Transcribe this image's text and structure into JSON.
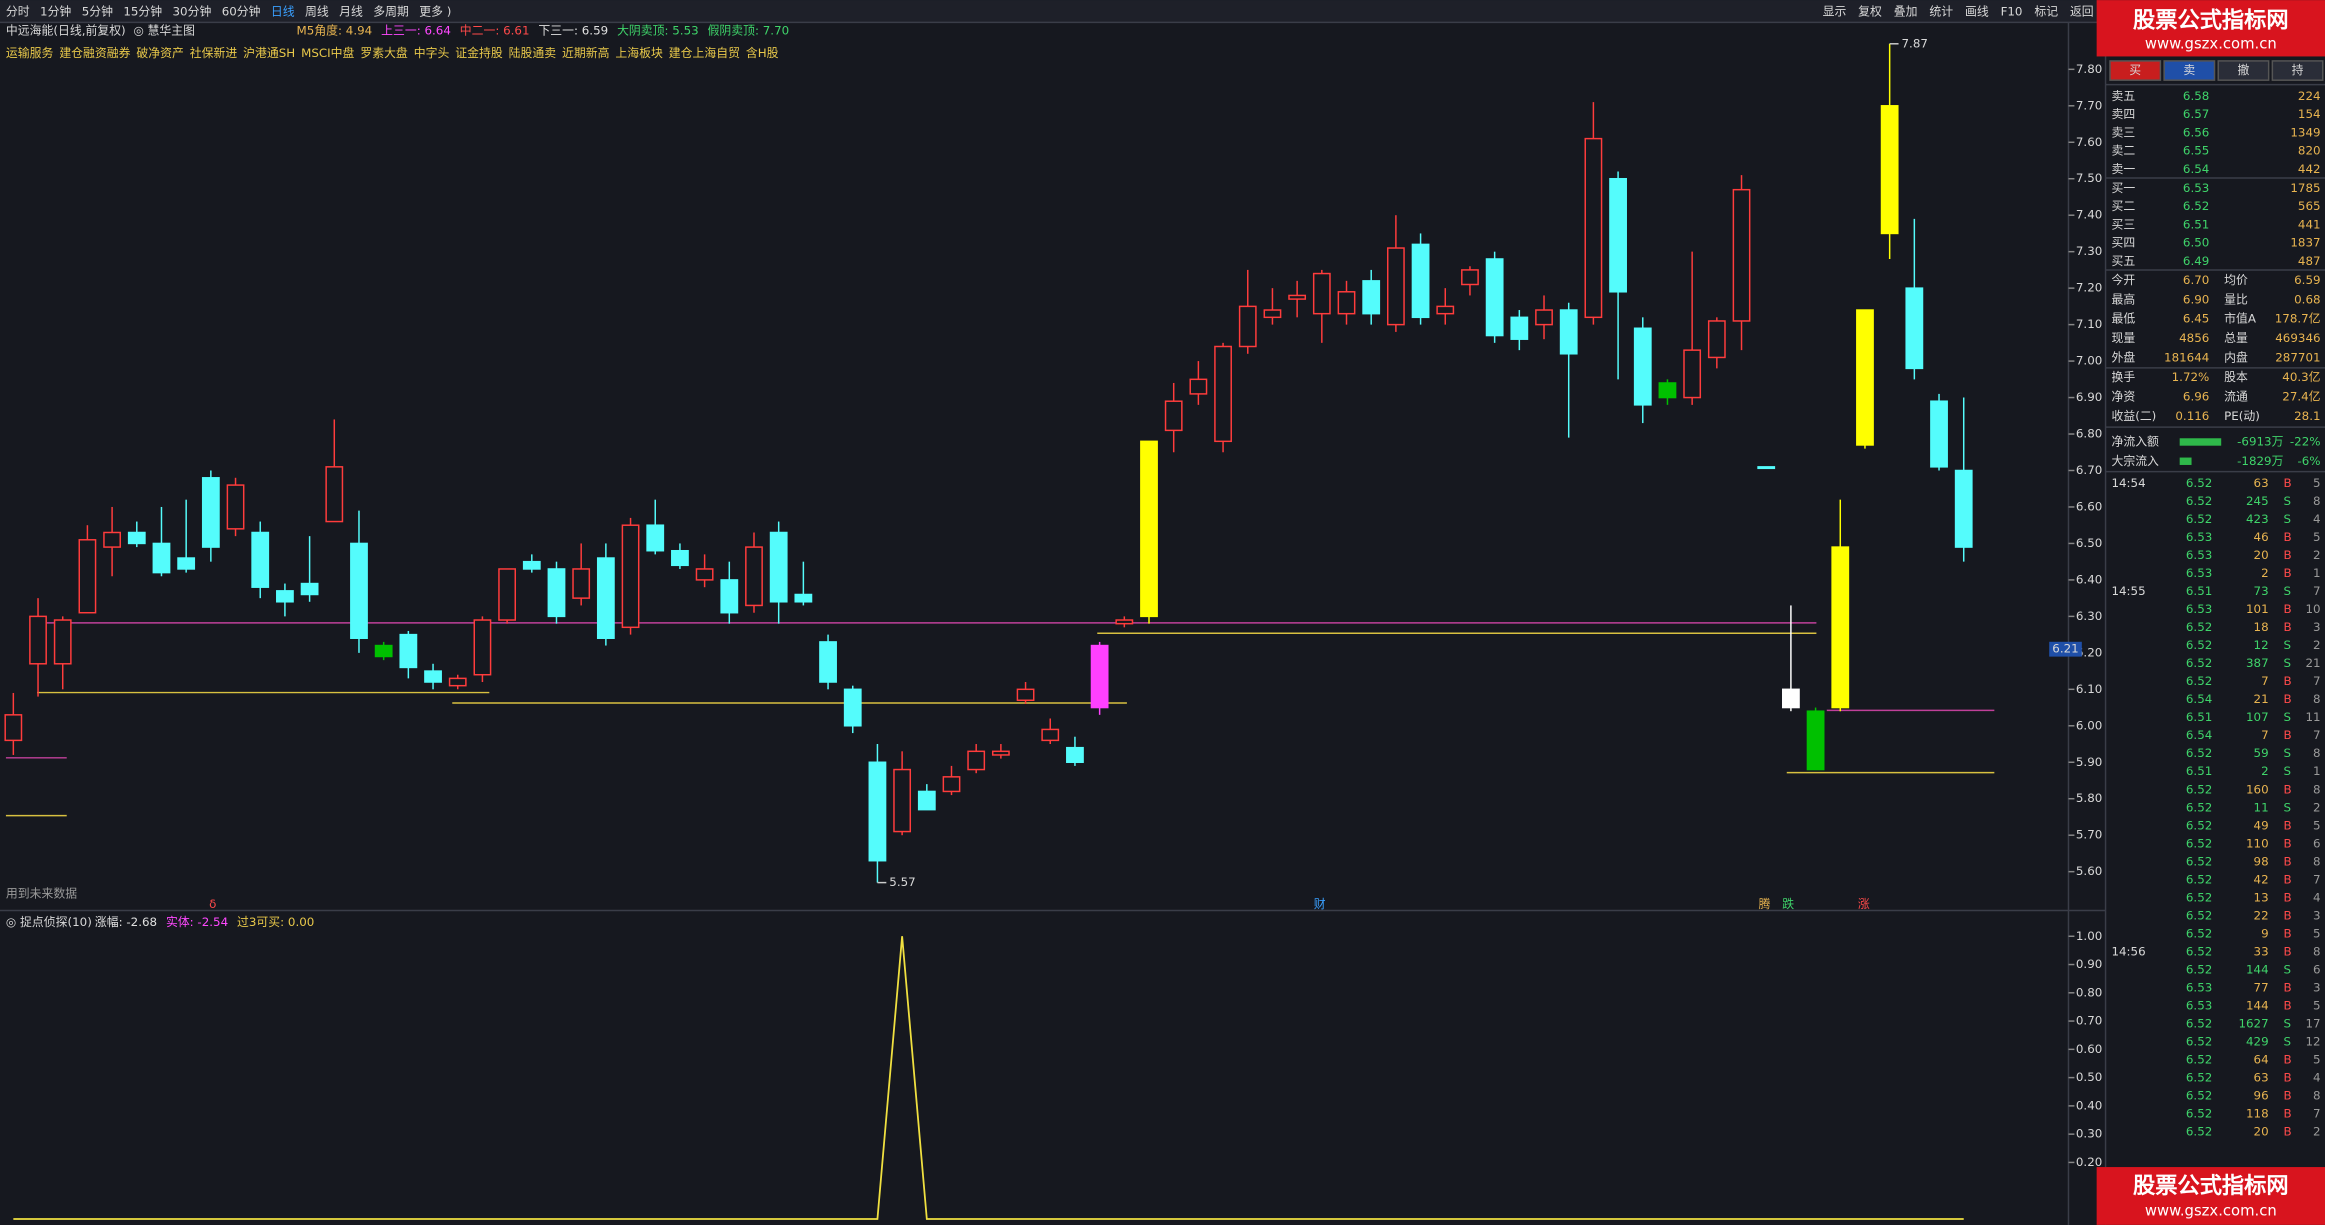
{
  "toolbar": {
    "left": [
      "分时",
      "1分钟",
      "5分钟",
      "15分钟",
      "30分钟",
      "60分钟",
      "日线",
      "周线",
      "月线",
      "多周期",
      "更多 )"
    ],
    "right": [
      "显示",
      "复权",
      "叠加",
      "统计",
      "画线",
      "F10",
      "标记",
      "返回"
    ]
  },
  "header": {
    "title": "中远海能(日线,前复权)",
    "template": "◎ 慧华主图",
    "indicators": [
      {
        "text": "M5角度: 4.94",
        "color": "#e8b450"
      },
      {
        "text": "上三一: 6.64",
        "color": "#ff48ff"
      },
      {
        "text": "中二一: 6.61",
        "color": "#ff4a4a"
      },
      {
        "text": "下三一: 6.59",
        "color": "#e0e0e0"
      },
      {
        "text": "大阴卖顶: 5.53",
        "color": "#3fd46a"
      },
      {
        "text": "假阴卖顶: 7.70",
        "color": "#3fd46a"
      }
    ],
    "tags": [
      "运输服务",
      "建仓融资融券",
      "破净资产",
      "社保新进",
      "沪港通SH",
      "MSCI中盘",
      "罗素大盘",
      "中字头",
      "证金持股",
      "陆股通卖",
      "近期新高",
      "上海板块",
      "建仓上海自贸",
      "含H股"
    ],
    "future_note": "用到未来数据"
  },
  "markers": [
    "δ",
    "财",
    "腾",
    "跌",
    "涨"
  ],
  "chart_data": [
    {
      "type": "candlestick",
      "up_color": "#ff3c3c",
      "open": [
        5.96,
        6.17,
        6.17,
        6.31,
        6.49,
        6.53,
        6.5,
        6.46,
        6.68,
        6.54,
        6.53,
        6.37,
        6.39,
        6.56,
        6.5,
        6.22,
        6.25,
        6.15,
        6.11,
        6.14,
        6.29,
        6.45,
        6.43,
        6.35,
        6.46,
        6.27,
        6.55,
        6.48,
        6.4,
        6.4,
        6.33,
        6.53,
        6.36,
        6.23,
        6.1,
        5.9,
        5.71,
        5.82,
        5.82,
        5.88,
        5.92,
        6.07,
        5.96,
        5.94,
        6.05,
        6.28,
        6.3,
        6.81,
        6.91,
        6.78,
        7.04,
        7.12,
        7.17,
        7.13,
        7.13,
        7.22,
        7.1,
        7.32,
        7.13,
        7.21,
        7.28,
        7.12,
        7.1,
        7.14,
        7.12,
        7.5,
        7.09,
        6.94,
        6.9,
        7.01,
        7.11,
        6.71,
        6.05,
        6.04,
        6.05,
        6.77,
        7.35,
        7.2,
        6.89,
        6.7
      ],
      "high": [
        6.09,
        6.35,
        6.3,
        6.55,
        6.6,
        6.56,
        6.6,
        6.62,
        6.7,
        6.68,
        6.56,
        6.39,
        6.52,
        6.84,
        6.59,
        6.23,
        6.26,
        6.17,
        6.14,
        6.3,
        6.43,
        6.47,
        6.45,
        6.5,
        6.5,
        6.57,
        6.62,
        6.5,
        6.47,
        6.45,
        6.53,
        6.56,
        6.45,
        6.25,
        6.11,
        5.95,
        5.93,
        5.84,
        5.89,
        5.95,
        5.95,
        6.12,
        6.02,
        5.97,
        6.23,
        6.3,
        6.78,
        6.94,
        7.0,
        7.05,
        7.25,
        7.2,
        7.22,
        7.25,
        7.22,
        7.25,
        7.4,
        7.35,
        7.2,
        7.26,
        7.3,
        7.14,
        7.18,
        7.16,
        7.71,
        7.52,
        7.12,
        6.95,
        7.3,
        7.12,
        7.51,
        6.71,
        6.33,
        6.05,
        6.62,
        7.14,
        7.87,
        7.39,
        6.91,
        6.9
      ],
      "low": [
        5.92,
        6.08,
        6.1,
        6.31,
        6.41,
        6.49,
        6.41,
        6.42,
        6.45,
        6.52,
        6.35,
        6.3,
        6.34,
        6.56,
        6.2,
        6.18,
        6.13,
        6.1,
        6.1,
        6.12,
        6.28,
        6.42,
        6.28,
        6.33,
        6.22,
        6.25,
        6.47,
        6.43,
        6.38,
        6.28,
        6.31,
        6.28,
        6.33,
        6.1,
        5.98,
        5.57,
        5.7,
        5.77,
        5.81,
        5.87,
        5.91,
        6.06,
        5.95,
        5.89,
        6.03,
        6.27,
        6.28,
        6.75,
        6.88,
        6.75,
        7.02,
        7.1,
        7.12,
        7.05,
        7.1,
        7.1,
        7.08,
        7.1,
        7.1,
        7.18,
        7.05,
        7.03,
        7.06,
        6.79,
        7.1,
        6.95,
        6.83,
        6.88,
        6.88,
        6.98,
        7.03,
        6.71,
        6.04,
        5.88,
        6.04,
        6.76,
        7.28,
        6.95,
        6.7,
        6.45
      ],
      "close": [
        6.03,
        6.3,
        6.29,
        6.51,
        6.53,
        6.5,
        6.42,
        6.43,
        6.49,
        6.66,
        6.38,
        6.34,
        6.36,
        6.71,
        6.24,
        6.19,
        6.16,
        6.12,
        6.13,
        6.29,
        6.43,
        6.43,
        6.3,
        6.43,
        6.24,
        6.55,
        6.48,
        6.44,
        6.43,
        6.31,
        6.49,
        6.34,
        6.34,
        6.12,
        6.0,
        5.63,
        5.88,
        5.77,
        5.86,
        5.93,
        5.93,
        6.1,
        5.99,
        5.9,
        6.22,
        6.29,
        6.78,
        6.89,
        6.95,
        7.04,
        7.15,
        7.14,
        7.18,
        7.24,
        7.19,
        7.13,
        7.31,
        7.12,
        7.15,
        7.25,
        7.07,
        7.06,
        7.14,
        7.02,
        7.61,
        7.19,
        6.88,
        6.9,
        7.03,
        7.11,
        7.47,
        6.71,
        6.1,
        5.88,
        6.49,
        7.14,
        7.7,
        6.98,
        6.71,
        6.49
      ],
      "colors": [
        "#ff3c3c",
        "#ff3c3c",
        "#ff3c3c",
        "#ff3c3c",
        "#ff3c3c",
        "#54fcfc",
        "#54fcfc",
        "#54fcfc",
        "#54fcfc",
        "#ff3c3c",
        "#54fcfc",
        "#54fcfc",
        "#54fcfc",
        "#ff3c3c",
        "#54fcfc",
        "#00c000",
        "#54fcfc",
        "#54fcfc",
        "#ff3c3c",
        "#ff3c3c",
        "#ff3c3c",
        "#54fcfc",
        "#54fcfc",
        "#ff3c3c",
        "#54fcfc",
        "#ff3c3c",
        "#54fcfc",
        "#54fcfc",
        "#ff3c3c",
        "#54fcfc",
        "#ff3c3c",
        "#54fcfc",
        "#54fcfc",
        "#54fcfc",
        "#54fcfc",
        "#54fcfc",
        "#ff3c3c",
        "#54fcfc",
        "#ff3c3c",
        "#ff3c3c",
        "#ff3c3c",
        "#ff3c3c",
        "#ff3c3c",
        "#54fcfc",
        "#ff40ff",
        "#ff3c3c",
        "#ffff00",
        "#ff3c3c",
        "#ff3c3c",
        "#ff3c3c",
        "#ff3c3c",
        "#ff3c3c",
        "#ff3c3c",
        "#ff3c3c",
        "#ff3c3c",
        "#54fcfc",
        "#ff3c3c",
        "#54fcfc",
        "#ff3c3c",
        "#ff3c3c",
        "#54fcfc",
        "#54fcfc",
        "#ff3c3c",
        "#54fcfc",
        "#ff3c3c",
        "#54fcfc",
        "#54fcfc",
        "#00c000",
        "#ff3c3c",
        "#ff3c3c",
        "#ff3c3c",
        "#54fcfc",
        "#ffffff",
        "#00c000",
        "#ffff00",
        "#ffff00",
        "#ffff00",
        "#54fcfc",
        "#54fcfc",
        "#54fcfc"
      ],
      "ylim": [
        5.53,
        7.88
      ],
      "yticks": [
        {
          "value": 5.6,
          "label": "5.60"
        },
        {
          "value": 5.7,
          "label": "5.70"
        },
        {
          "value": 5.8,
          "label": "5.80"
        },
        {
          "value": 5.9,
          "label": "5.90"
        },
        {
          "value": 6.0,
          "label": "6.00"
        },
        {
          "value": 6.1,
          "label": "6.10"
        },
        {
          "value": 6.2,
          "label": "6.20"
        },
        {
          "value": 6.3,
          "label": "6.30"
        },
        {
          "value": 6.4,
          "label": "6.40"
        },
        {
          "value": 6.5,
          "label": "6.50"
        },
        {
          "value": 6.6,
          "label": "6.60"
        },
        {
          "value": 6.7,
          "label": "6.70"
        },
        {
          "value": 6.8,
          "label": "6.80"
        },
        {
          "value": 6.9,
          "label": "6.90"
        },
        {
          "value": 7.0,
          "label": "7.00"
        },
        {
          "value": 7.1,
          "label": "7.10"
        },
        {
          "value": 7.2,
          "label": "7.20"
        },
        {
          "value": 7.3,
          "label": "7.30"
        },
        {
          "value": 7.4,
          "label": "7.40"
        },
        {
          "value": 7.5,
          "label": "7.50"
        },
        {
          "value": 7.6,
          "label": "7.60"
        },
        {
          "value": 7.7,
          "label": "7.70"
        },
        {
          "value": 7.8,
          "label": "7.80"
        }
      ],
      "annotations": [
        {
          "value": 7.87,
          "label": "7.87"
        },
        {
          "value": 5.57,
          "label": "5.57"
        }
      ],
      "crosshair": {
        "value": 6.21,
        "label": "6.21"
      }
    },
    {
      "type": "line",
      "title": "◎ 捉点侦探(10)",
      "legend": [
        {
          "text": "涨幅: -2.68",
          "color": "#e0e0e0"
        },
        {
          "text": "实体: -2.54",
          "color": "#ff48ff"
        },
        {
          "text": "过3可买: 0.00",
          "color": "#e8c84a"
        }
      ],
      "color": "#f0e040",
      "values": [
        0,
        0,
        0,
        0,
        0,
        0,
        0,
        0,
        0,
        0,
        0,
        0,
        0,
        0,
        0,
        0,
        0,
        0,
        0,
        0,
        0,
        0,
        0,
        0,
        0,
        0,
        0,
        0,
        0,
        0,
        0,
        0,
        0,
        0,
        0,
        0,
        1,
        0,
        0,
        0,
        0,
        0,
        0,
        0,
        0,
        0,
        0,
        0,
        0,
        0,
        0,
        0,
        0,
        0,
        0,
        0,
        0,
        0,
        0,
        0,
        0,
        0,
        0,
        0,
        0,
        0,
        0,
        0,
        0,
        0,
        0,
        0,
        0,
        0,
        0,
        0,
        0,
        0,
        0,
        0
      ],
      "ylim": [
        0,
        1.07
      ],
      "yticks": [
        {
          "value": 0.2,
          "label": "0.20"
        },
        {
          "value": 0.3,
          "label": "0.30"
        },
        {
          "value": 0.4,
          "label": "0.40"
        },
        {
          "value": 0.5,
          "label": "0.50"
        },
        {
          "value": 0.6,
          "label": "0.60"
        },
        {
          "value": 0.7,
          "label": "0.70"
        },
        {
          "value": 0.8,
          "label": "0.80"
        },
        {
          "value": 0.9,
          "label": "0.90"
        },
        {
          "value": 1.0,
          "label": "1.00"
        }
      ]
    }
  ],
  "order_panel": {
    "buttons": [
      "买",
      "卖",
      "撤",
      "持"
    ],
    "asks": [
      {
        "label": "卖五",
        "price": "6.58",
        "volume": "224"
      },
      {
        "label": "卖四",
        "price": "6.57",
        "volume": "154"
      },
      {
        "label": "卖三",
        "price": "6.56",
        "volume": "1349"
      },
      {
        "label": "卖二",
        "price": "6.55",
        "volume": "820"
      },
      {
        "label": "卖一",
        "price": "6.54",
        "volume": "442"
      }
    ],
    "bids": [
      {
        "label": "买一",
        "price": "6.53",
        "volume": "1785"
      },
      {
        "label": "买二",
        "price": "6.52",
        "volume": "565"
      },
      {
        "label": "买三",
        "price": "6.51",
        "volume": "441"
      },
      {
        "label": "买四",
        "price": "6.50",
        "volume": "1837"
      },
      {
        "label": "买五",
        "price": "6.49",
        "volume": "487"
      }
    ],
    "stats": [
      [
        "今开",
        "6.70",
        "均价",
        "6.59"
      ],
      [
        "最高",
        "6.90",
        "量比",
        "0.68"
      ],
      [
        "最低",
        "6.45",
        "市值A",
        "178.7亿"
      ],
      [
        "现量",
        "4856",
        "总量",
        "469346"
      ],
      [
        "外盘",
        "181644",
        "内盘",
        "287701"
      ],
      [
        "换手",
        "1.72%",
        "股本",
        "40.3亿"
      ],
      [
        "净资",
        "6.96",
        "流通",
        "27.4亿"
      ],
      [
        "收益(二)",
        "0.116",
        "PE(动)",
        "28.1"
      ]
    ],
    "flow": [
      {
        "label": "净流入额",
        "value": "-6913万",
        "percent": "-22%"
      },
      {
        "label": "大宗流入",
        "value": "-1829万",
        "percent": "-6%"
      }
    ],
    "ticks": [
      {
        "time": "14:54",
        "price": "6.52",
        "volume": "63",
        "side": "B",
        "count": "5"
      },
      {
        "price": "6.52",
        "volume": "245",
        "side": "S",
        "count": "8"
      },
      {
        "price": "6.52",
        "volume": "423",
        "side": "S",
        "count": "4"
      },
      {
        "price": "6.53",
        "volume": "46",
        "side": "B",
        "count": "5"
      },
      {
        "price": "6.53",
        "volume": "20",
        "side": "B",
        "count": "2"
      },
      {
        "price": "6.53",
        "volume": "2",
        "side": "B",
        "count": "1"
      },
      {
        "time": "14:55",
        "price": "6.51",
        "volume": "73",
        "side": "S",
        "count": "7"
      },
      {
        "price": "6.53",
        "volume": "101",
        "side": "B",
        "count": "10"
      },
      {
        "price": "6.52",
        "volume": "18",
        "side": "B",
        "count": "3"
      },
      {
        "price": "6.52",
        "volume": "12",
        "side": "S",
        "count": "2"
      },
      {
        "price": "6.52",
        "volume": "387",
        "side": "S",
        "count": "21"
      },
      {
        "price": "6.52",
        "volume": "7",
        "side": "B",
        "count": "7"
      },
      {
        "price": "6.54",
        "volume": "21",
        "side": "B",
        "count": "8"
      },
      {
        "price": "6.51",
        "volume": "107",
        "side": "S",
        "count": "11"
      },
      {
        "price": "6.54",
        "volume": "7",
        "side": "B",
        "count": "7"
      },
      {
        "price": "6.52",
        "volume": "59",
        "side": "S",
        "count": "8"
      },
      {
        "price": "6.51",
        "volume": "2",
        "side": "S",
        "count": "1"
      },
      {
        "price": "6.52",
        "volume": "160",
        "side": "B",
        "count": "8"
      },
      {
        "price": "6.52",
        "volume": "11",
        "side": "S",
        "count": "2"
      },
      {
        "price": "6.52",
        "volume": "49",
        "side": "B",
        "count": "5"
      },
      {
        "price": "6.52",
        "volume": "110",
        "side": "B",
        "count": "6"
      },
      {
        "price": "6.52",
        "volume": "98",
        "side": "B",
        "count": "8"
      },
      {
        "price": "6.52",
        "volume": "42",
        "side": "B",
        "count": "7"
      },
      {
        "price": "6.52",
        "volume": "13",
        "side": "B",
        "count": "4"
      },
      {
        "price": "6.52",
        "volume": "22",
        "side": "B",
        "count": "3"
      },
      {
        "price": "6.52",
        "volume": "9",
        "side": "B",
        "count": "5"
      },
      {
        "time": "14:56",
        "price": "6.52",
        "volume": "33",
        "side": "B",
        "count": "8"
      },
      {
        "price": "6.52",
        "volume": "144",
        "side": "S",
        "count": "6"
      },
      {
        "price": "6.53",
        "volume": "77",
        "side": "B",
        "count": "3"
      },
      {
        "price": "6.53",
        "volume": "144",
        "side": "B",
        "count": "5"
      },
      {
        "price": "6.52",
        "volume": "1627",
        "side": "S",
        "count": "17"
      },
      {
        "price": "6.52",
        "volume": "429",
        "side": "S",
        "count": "12"
      },
      {
        "price": "6.52",
        "volume": "64",
        "side": "B",
        "count": "5"
      },
      {
        "price": "6.52",
        "volume": "63",
        "side": "B",
        "count": "4"
      },
      {
        "price": "6.52",
        "volume": "96",
        "side": "B",
        "count": "8"
      },
      {
        "price": "6.52",
        "volume": "118",
        "side": "B",
        "count": "7"
      },
      {
        "price": "6.52",
        "volume": "20",
        "side": "B",
        "count": "2"
      }
    ]
  },
  "watermark": {
    "title": "股票公式指标网",
    "url": "www.gszx.com.cn"
  }
}
